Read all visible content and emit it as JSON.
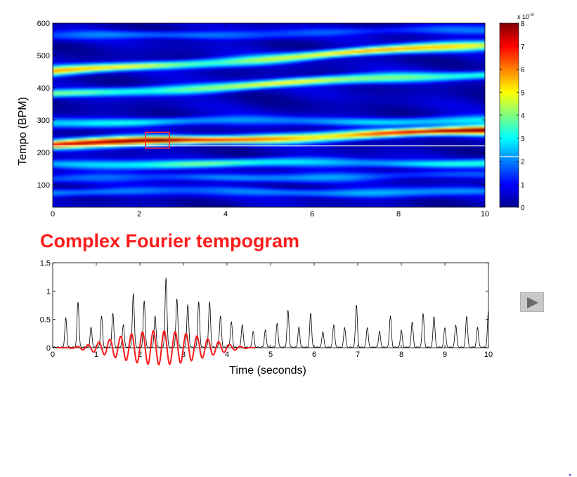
{
  "slide": {
    "title": "Complex Fourier tempogram",
    "play_label": "Play"
  },
  "chart_data": [
    {
      "type": "heatmap",
      "title": "",
      "xlabel": "",
      "ylabel": "Tempo (BPM)",
      "xlim": [
        0,
        10
      ],
      "ylim": [
        30,
        600
      ],
      "x_ticks": [
        "0",
        "2",
        "4",
        "6",
        "8",
        "10"
      ],
      "y_ticks": [
        "100",
        "200",
        "300",
        "400",
        "500",
        "600"
      ],
      "colormap": "jet",
      "colorbar": {
        "range": [
          0,
          8
        ],
        "ticks": [
          "0",
          "1",
          "2",
          "3",
          "4",
          "5",
          "6",
          "7",
          "8"
        ],
        "exponent_label": "x 10",
        "exponent_power": "-3",
        "marker_value": 2.2
      },
      "bands": [
        {
          "tempo_start": 225,
          "tempo_end": 268,
          "peak": 7.8
        },
        {
          "tempo_start": 450,
          "tempo_end": 535,
          "peak": 5.3
        },
        {
          "tempo_start": 380,
          "tempo_end": 445,
          "peak": 4.5
        },
        {
          "tempo_start": 165,
          "tempo_end": 170,
          "peak": 3.2
        },
        {
          "tempo_start": 295,
          "tempo_end": 300,
          "peak": 2.5
        },
        {
          "tempo_start": 80,
          "tempo_end": 78,
          "peak": 2.0
        },
        {
          "tempo_start": 120,
          "tempo_end": 130,
          "peak": 1.8
        },
        {
          "tempo_start": 560,
          "tempo_end": 580,
          "peak": 1.6
        }
      ],
      "highlight_box": {
        "time_start": 2.15,
        "time_end": 2.7,
        "tempo_min": 213,
        "tempo_max": 262
      },
      "cursor_tempo": 220
    },
    {
      "type": "line",
      "title": "",
      "xlabel": "Time (seconds)",
      "ylabel": "",
      "xlim": [
        0,
        10
      ],
      "ylim": [
        0,
        1.5
      ],
      "x_ticks": [
        "0",
        "1",
        "2",
        "3",
        "4",
        "5",
        "6",
        "7",
        "8",
        "9",
        "10"
      ],
      "y_ticks": [
        "0",
        "0.5",
        "1",
        "1.5"
      ],
      "series": [
        {
          "role": "novelty curve",
          "color": "#000000",
          "peaks": [
            [
              0.3,
              0.52
            ],
            [
              0.58,
              0.8
            ],
            [
              0.88,
              0.35
            ],
            [
              1.12,
              0.55
            ],
            [
              1.38,
              0.6
            ],
            [
              1.62,
              0.4
            ],
            [
              1.85,
              0.95
            ],
            [
              2.1,
              0.82
            ],
            [
              2.35,
              0.55
            ],
            [
              2.6,
              1.22
            ],
            [
              2.85,
              0.85
            ],
            [
              3.1,
              0.75
            ],
            [
              3.35,
              0.8
            ],
            [
              3.6,
              0.8
            ],
            [
              3.85,
              0.55
            ],
            [
              4.1,
              0.45
            ],
            [
              4.35,
              0.4
            ],
            [
              4.6,
              0.28
            ],
            [
              4.88,
              0.3
            ],
            [
              5.15,
              0.42
            ],
            [
              5.4,
              0.65
            ],
            [
              5.65,
              0.35
            ],
            [
              5.92,
              0.6
            ],
            [
              6.2,
              0.28
            ],
            [
              6.45,
              0.4
            ],
            [
              6.7,
              0.35
            ],
            [
              6.97,
              0.75
            ],
            [
              7.22,
              0.35
            ],
            [
              7.5,
              0.28
            ],
            [
              7.75,
              0.55
            ],
            [
              8.0,
              0.3
            ],
            [
              8.25,
              0.45
            ],
            [
              8.5,
              0.6
            ],
            [
              8.75,
              0.55
            ],
            [
              9.0,
              0.35
            ],
            [
              9.25,
              0.4
            ],
            [
              9.5,
              0.55
            ],
            [
              9.75,
              0.35
            ],
            [
              10.0,
              0.65
            ]
          ]
        },
        {
          "role": "windowed sinusoid",
          "color": "#ff1a1a",
          "time_range": [
            0.1,
            4.65
          ],
          "center": 2.45,
          "amplitude": 0.3,
          "frequency_hz": 4.0,
          "phase": -1.5
        }
      ]
    }
  ]
}
